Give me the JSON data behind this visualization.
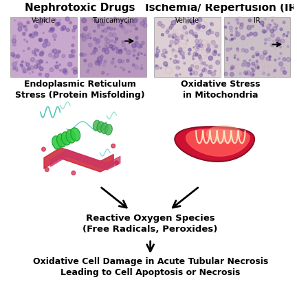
{
  "bg_color": "#ffffff",
  "title_left": "Nephrotoxic Drugs",
  "title_right": "Ischemia/ Reperfusion (IR",
  "sublabel_vehicle1": "Vehicle",
  "sublabel_tuni": "Tunicamycin",
  "sublabel_vehicle2": "Vehicle",
  "sublabel_ir": "IR",
  "label_er": "Endoplasmic Reticulum\nStress (Protein Misfolding)",
  "label_mito": "Oxidative Stress\nin Mitochondria",
  "label_ros": "Reactive Oxygen Species\n(Free Radicals, Peroxides)",
  "label_bottom": "Oxidative Cell Damage in Acute Tubular Necrosis\nLeading to Cell Apoptosis or Necrosis",
  "arrow_color": "#000000",
  "text_color": "#000000",
  "hist_colors": [
    "#c8a8cc",
    "#b898bc",
    "#ddd0d4",
    "#ccc0c8"
  ],
  "hist_dot_color": "#8060a0",
  "hist_dot_color2": "#c0a0d0"
}
